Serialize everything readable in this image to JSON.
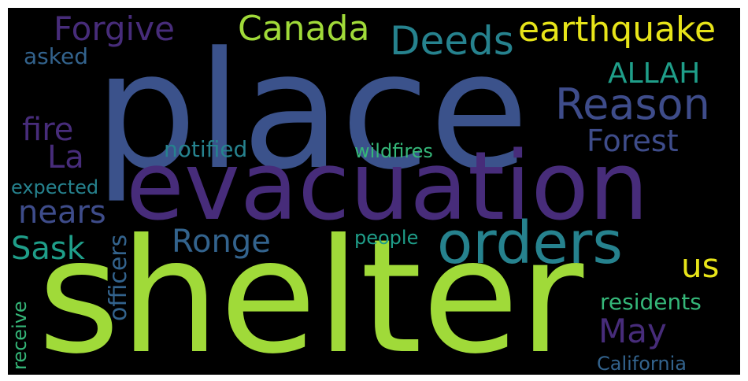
{
  "colors": {
    "background": "#000000",
    "purple": "#472c7a",
    "indigo": "#3e4c8a",
    "blue": "#3b528b",
    "steel": "#33638d",
    "teal": "#26828e",
    "sea": "#1f9e89",
    "green": "#35b779",
    "lime": "#a0da39",
    "yellow": "#e7e419"
  },
  "words": [
    "place",
    "shelter",
    "evacuation",
    "orders",
    "Reason",
    "Deeds",
    "earthquake",
    "Canada",
    "Forgive",
    "ALLAH",
    "Forest",
    "fire",
    "La",
    "asked",
    "notified",
    "wildfires",
    "expected",
    "nears",
    "Sask",
    "Ronge",
    "officers",
    "people",
    "us",
    "May",
    "residents",
    "receive",
    "California"
  ]
}
